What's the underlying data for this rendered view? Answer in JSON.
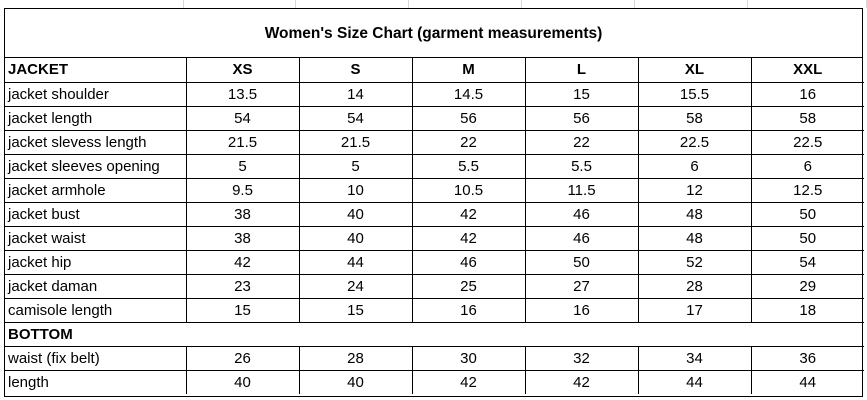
{
  "title": "Women's Size Chart (garment measurements)",
  "jacket_section": {
    "label": "JACKET",
    "sizes": [
      "XS",
      "S",
      "M",
      "L",
      "XL",
      "XXL"
    ],
    "rows": [
      {
        "name": "jacket shoulder",
        "values": [
          "13.5",
          "14",
          "14.5",
          "15",
          "15.5",
          "16"
        ]
      },
      {
        "name": "jacket length",
        "values": [
          "54",
          "54",
          "56",
          "56",
          "58",
          "58"
        ]
      },
      {
        "name": "jacket slevess length",
        "values": [
          "21.5",
          "21.5",
          "22",
          "22",
          "22.5",
          "22.5"
        ]
      },
      {
        "name": "jacket sleeves opening",
        "values": [
          "5",
          "5",
          "5.5",
          "5.5",
          "6",
          "6"
        ]
      },
      {
        "name": "jacket armhole",
        "values": [
          "9.5",
          "10",
          "10.5",
          "11.5",
          "12",
          "12.5"
        ]
      },
      {
        "name": "jacket bust",
        "values": [
          "38",
          "40",
          "42",
          "46",
          "48",
          "50"
        ]
      },
      {
        "name": "jacket waist",
        "values": [
          "38",
          "40",
          "42",
          "46",
          "48",
          "50"
        ]
      },
      {
        "name": "jacket hip",
        "values": [
          "42",
          "44",
          "46",
          "50",
          "52",
          "54"
        ]
      },
      {
        "name": "jacket daman",
        "values": [
          "23",
          "24",
          "25",
          "27",
          "28",
          "29"
        ]
      },
      {
        "name": "camisole length",
        "values": [
          "15",
          "15",
          "16",
          "16",
          "17",
          "18"
        ]
      }
    ]
  },
  "bottom_section": {
    "label": "BOTTOM",
    "rows": [
      {
        "name": "waist (fix belt)",
        "values": [
          "26",
          "28",
          "30",
          "32",
          "34",
          "36"
        ]
      },
      {
        "name": "length",
        "values": [
          "40",
          "40",
          "42",
          "42",
          "44",
          "44"
        ]
      }
    ]
  }
}
